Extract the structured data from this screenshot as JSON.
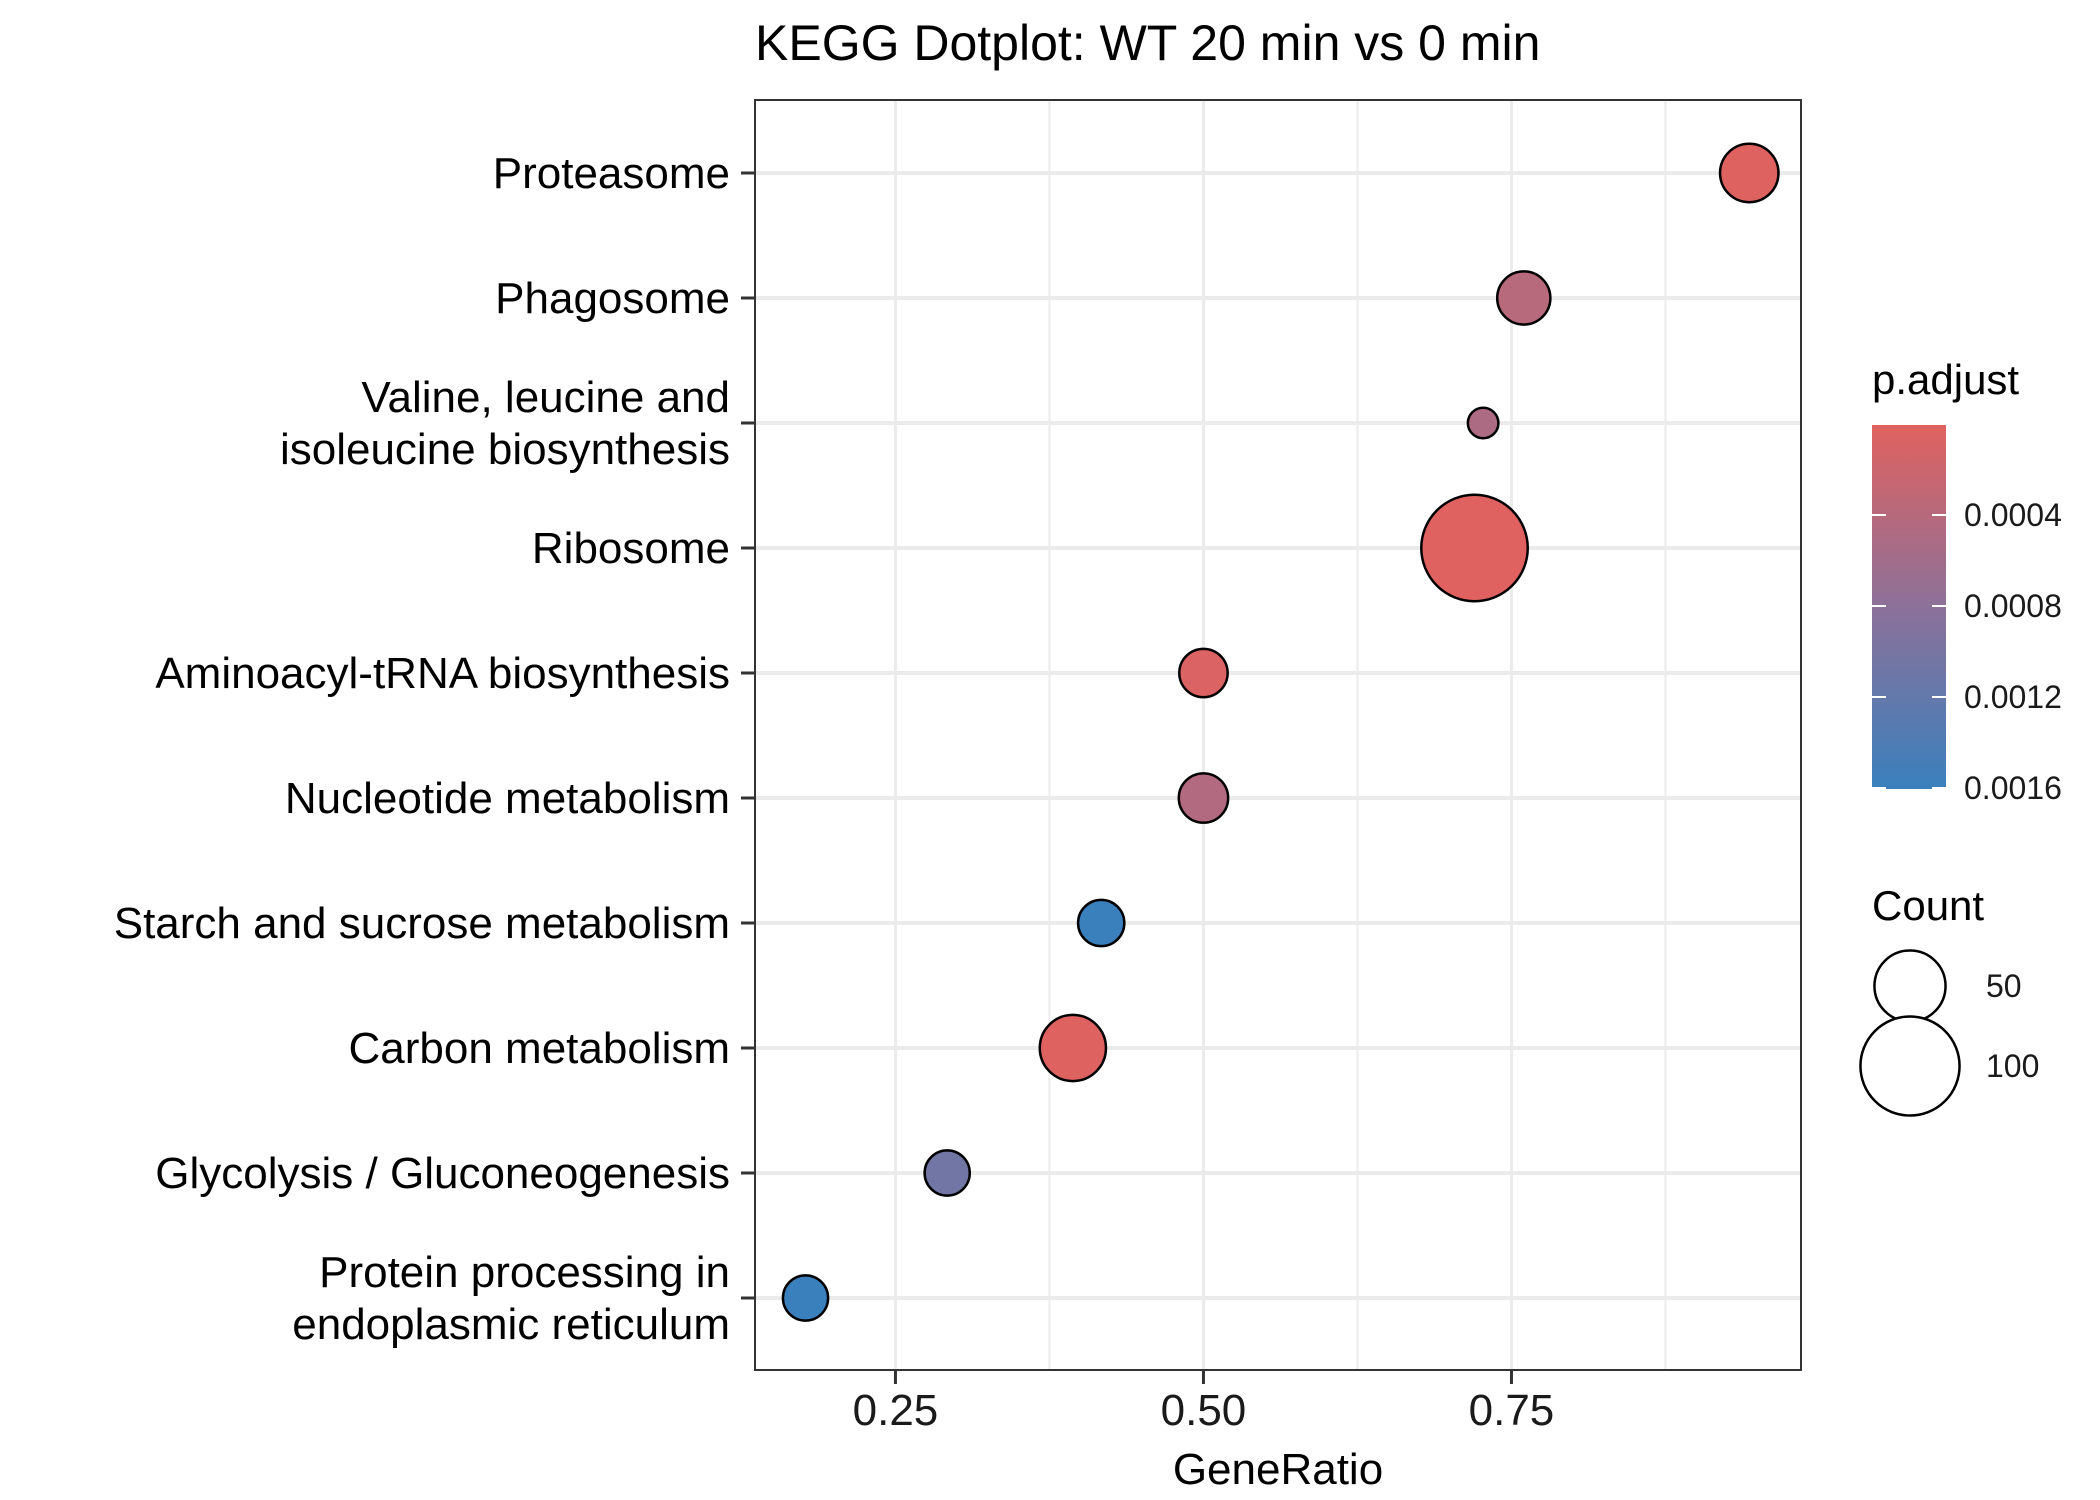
{
  "chart_data": {
    "type": "scatter",
    "title": "KEGG Dotplot: WT 20 min vs 0 min",
    "xlabel": "GeneRatio",
    "ylabel": "",
    "xlim": [
      0.136,
      0.985
    ],
    "xticks": [
      0.25,
      0.5,
      0.75
    ],
    "xtick_labels": [
      "0.25",
      "0.50",
      "0.75"
    ],
    "grid": true,
    "categories": [
      "Proteasome",
      "Phagosome",
      "Valine, leucine and isoleucine biosynthesis",
      "Ribosome",
      "Aminoacyl-tRNA biosynthesis",
      "Nucleotide metabolism",
      "Starch and sucrose metabolism",
      "Carbon metabolism",
      "Glycolysis / Gluconeogenesis",
      "Protein processing in endoplasmic reticulum"
    ],
    "category_lines": [
      [
        "Proteasome"
      ],
      [
        "Phagosome"
      ],
      [
        "Valine, leucine and",
        "isoleucine biosynthesis"
      ],
      [
        "Ribosome"
      ],
      [
        "Aminoacyl-tRNA biosynthesis"
      ],
      [
        "Nucleotide metabolism"
      ],
      [
        "Starch and sucrose metabolism"
      ],
      [
        "Carbon metabolism"
      ],
      [
        "Glycolysis / Gluconeogenesis"
      ],
      [
        "Protein processing in",
        "endoplasmic reticulum"
      ]
    ],
    "points": [
      {
        "category": "Proteasome",
        "gene_ratio": 0.943,
        "count": 33,
        "p_adjust": 2e-05
      },
      {
        "category": "Phagosome",
        "gene_ratio": 0.76,
        "count": 27,
        "p_adjust": 0.0004
      },
      {
        "category": "Valine, leucine and isoleucine biosynthesis",
        "gene_ratio": 0.727,
        "count": 8,
        "p_adjust": 0.0005
      },
      {
        "category": "Ribosome",
        "gene_ratio": 0.72,
        "count": 116,
        "p_adjust": 1e-05
      },
      {
        "category": "Aminoacyl-tRNA biosynthesis",
        "gene_ratio": 0.5,
        "count": 22,
        "p_adjust": 5e-05
      },
      {
        "category": "Nucleotide metabolism",
        "gene_ratio": 0.5,
        "count": 23,
        "p_adjust": 0.00045
      },
      {
        "category": "Starch and sucrose metabolism",
        "gene_ratio": 0.417,
        "count": 20,
        "p_adjust": 0.00162
      },
      {
        "category": "Carbon metabolism",
        "gene_ratio": 0.394,
        "count": 43,
        "p_adjust": 2e-05
      },
      {
        "category": "Glycolysis / Gluconeogenesis",
        "gene_ratio": 0.292,
        "count": 19,
        "p_adjust": 0.00105
      },
      {
        "category": "Protein processing in endoplasmic reticulum",
        "gene_ratio": 0.177,
        "count": 19,
        "p_adjust": 0.0016
      }
    ],
    "color_legend": {
      "title": "p.adjust",
      "range": [
        0.0,
        0.0016
      ],
      "ticks": [
        0.0004,
        0.0008,
        0.0012,
        0.0016
      ],
      "tick_labels": [
        "0.0004",
        "0.0008",
        "0.0012",
        "0.0016"
      ],
      "low_color": "#e0625f",
      "mid_color": "#8c7199",
      "high_color": "#3a80bd"
    },
    "size_legend": {
      "title": "Count",
      "values": [
        50,
        100
      ],
      "labels": [
        "50",
        "100"
      ]
    }
  }
}
